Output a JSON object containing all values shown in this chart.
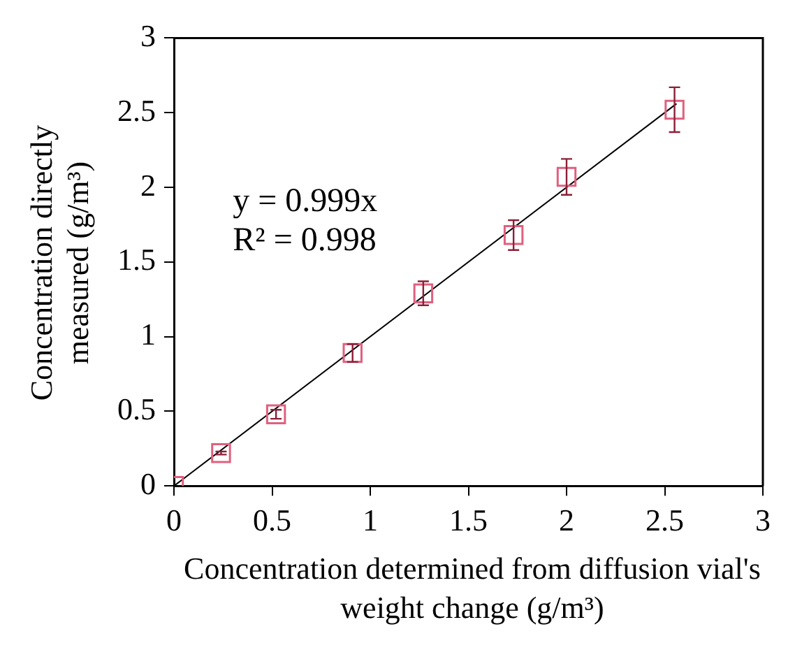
{
  "chart_data": {
    "type": "scatter",
    "xlabel": "Concentration determined from diffusion vial's weight change (g/m³)",
    "ylabel": "Concentration directly measured (g/m³)",
    "annotations": [
      "y = 0.999x",
      "R² = 0.998"
    ],
    "xlim": [
      0,
      3
    ],
    "xticks": [
      0,
      0.5,
      1,
      1.5,
      2,
      2.5,
      3
    ],
    "ylim": [
      0,
      3
    ],
    "yticks": [
      0,
      0.5,
      1,
      1.5,
      2,
      2.5,
      3
    ],
    "grid": false,
    "series": [
      {
        "marker": "square",
        "color": "#e0607e",
        "x": [
          0,
          0.24,
          0.52,
          0.91,
          1.27,
          1.73,
          2.0,
          2.55
        ],
        "values": [
          0,
          0.22,
          0.48,
          0.89,
          1.29,
          1.68,
          2.07,
          2.52
        ],
        "errors": [
          null,
          0.01,
          0.03,
          0.06,
          0.08,
          0.1,
          0.12,
          0.15
        ]
      },
      {
        "type": "line",
        "marker": "none",
        "color": "#000000",
        "x": [
          0,
          2.56
        ],
        "values": [
          0,
          2.56
        ]
      }
    ]
  }
}
